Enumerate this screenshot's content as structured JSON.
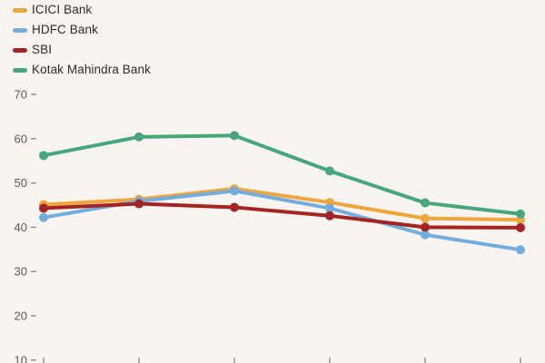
{
  "background_color": "#FAF4F0",
  "legend_text_color": "#2D2D2D",
  "axis": {
    "label_color": "#5A5A5A",
    "tick_mark_color": "#8C8C8C",
    "y_tick_labels": [
      "70",
      "60",
      "50",
      "40",
      "30",
      "20",
      "10"
    ],
    "x_tick_count": 6
  },
  "chart_data": {
    "type": "line",
    "categories": [
      "",
      "",
      "",
      "",
      "",
      ""
    ],
    "x_axis_labels_visible": false,
    "ylim_visible": [
      10,
      70
    ],
    "y_tick_step": 10,
    "grid": false,
    "legend_position": "top-left",
    "marker": "circle",
    "series": [
      {
        "name": "ICICI Bank",
        "color": "#EFA63C",
        "values": [
          45.1,
          46.3,
          48.7,
          45.6,
          42.0,
          41.7
        ]
      },
      {
        "name": "HDFC Bank",
        "color": "#72AEDD",
        "values": [
          42.2,
          45.9,
          48.2,
          44.3,
          38.3,
          34.9
        ]
      },
      {
        "name": "SBI",
        "color": "#A32422",
        "values": [
          44.3,
          45.3,
          44.5,
          42.6,
          40.0,
          39.9
        ]
      },
      {
        "name": "Kotak Mahindra Bank",
        "color": "#47A77A",
        "values": [
          56.2,
          60.4,
          60.7,
          52.7,
          45.5,
          43.0
        ]
      }
    ]
  }
}
